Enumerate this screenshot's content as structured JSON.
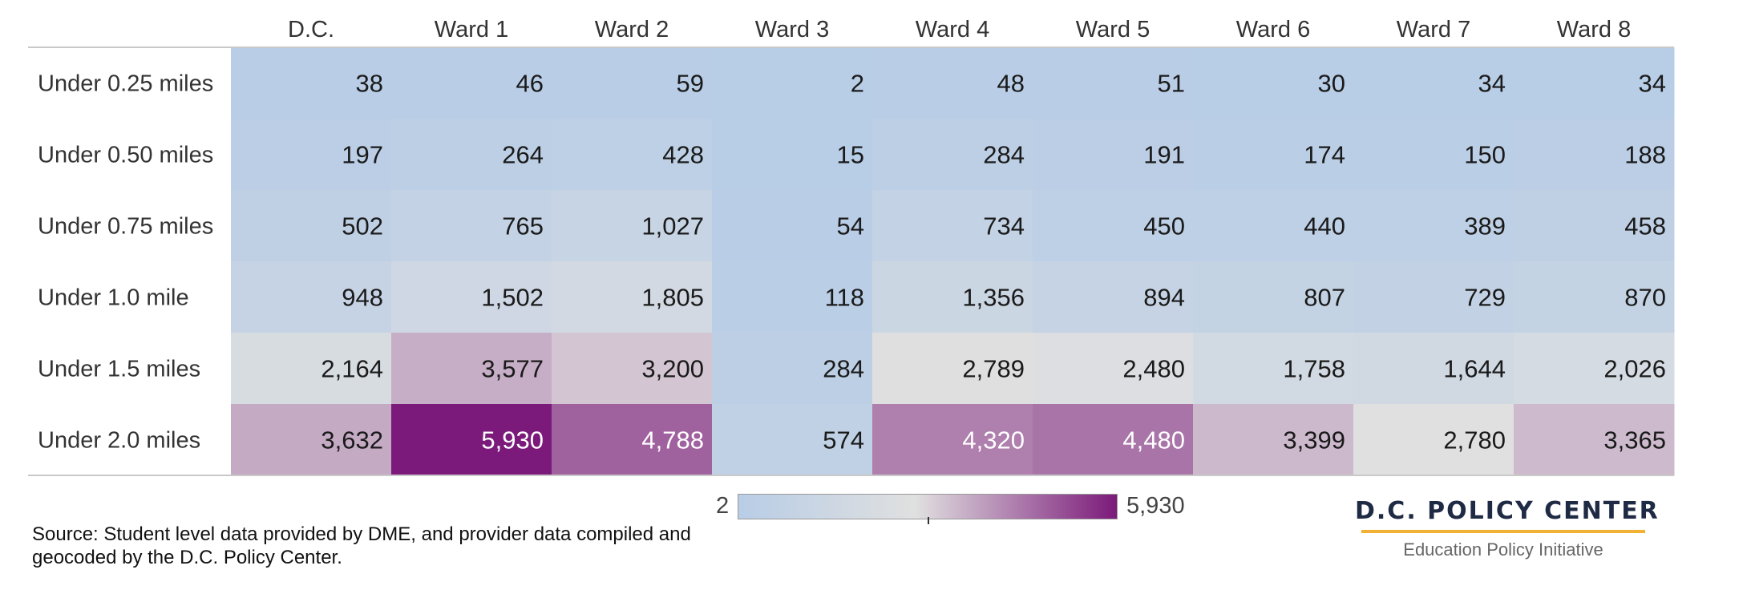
{
  "chart_data": {
    "type": "heatmap",
    "columns": [
      "D.C.",
      "Ward 1",
      "Ward 2",
      "Ward 3",
      "Ward 4",
      "Ward 5",
      "Ward 6",
      "Ward 7",
      "Ward 8"
    ],
    "rows": [
      "Under 0.25 miles",
      "Under 0.50 miles",
      "Under 0.75 miles",
      "Under 1.0 mile",
      "Under 1.5 miles",
      "Under 2.0 miles"
    ],
    "values": [
      [
        38,
        46,
        59,
        2,
        48,
        51,
        30,
        34,
        34
      ],
      [
        197,
        264,
        428,
        15,
        284,
        191,
        174,
        150,
        188
      ],
      [
        502,
        765,
        1027,
        54,
        734,
        450,
        440,
        389,
        458
      ],
      [
        948,
        1502,
        1805,
        118,
        1356,
        894,
        807,
        729,
        870
      ],
      [
        2164,
        3577,
        3200,
        284,
        2789,
        2480,
        1758,
        1644,
        2026
      ],
      [
        3632,
        5930,
        4788,
        574,
        4320,
        4480,
        3399,
        2780,
        3365
      ]
    ],
    "value_labels": [
      [
        "38",
        "46",
        "59",
        "2",
        "48",
        "51",
        "30",
        "34",
        "34"
      ],
      [
        "197",
        "264",
        "428",
        "15",
        "284",
        "191",
        "174",
        "150",
        "188"
      ],
      [
        "502",
        "765",
        "1,027",
        "54",
        "734",
        "450",
        "440",
        "389",
        "458"
      ],
      [
        "948",
        "1,502",
        "1,805",
        "118",
        "1,356",
        "894",
        "807",
        "729",
        "870"
      ],
      [
        "2,164",
        "3,577",
        "3,200",
        "284",
        "2,789",
        "2,480",
        "1,758",
        "1,644",
        "2,026"
      ],
      [
        "3,632",
        "5,930",
        "4,788",
        "574",
        "4,320",
        "4,480",
        "3,399",
        "2,780",
        "3,365"
      ]
    ],
    "color_scale": {
      "min": 2,
      "mid": 2780,
      "max": 5930,
      "min_label": "2",
      "max_label": "5,930",
      "colors": [
        "#b8cde6",
        "#e0e0e0",
        "#7b1a7a"
      ]
    }
  },
  "footer": {
    "source": "Source: Student level data provided by DME, and provider data compiled and geocoded by the D.C. Policy Center.",
    "brand_name": "D.C. POLICY CENTER",
    "brand_subtitle": "Education Policy Initiative"
  },
  "colors": {
    "brand_rule": "#f2b134",
    "brand_text": "#1f2a44",
    "dark_text": "#1a1a1a",
    "light_text": "#ffffff"
  }
}
